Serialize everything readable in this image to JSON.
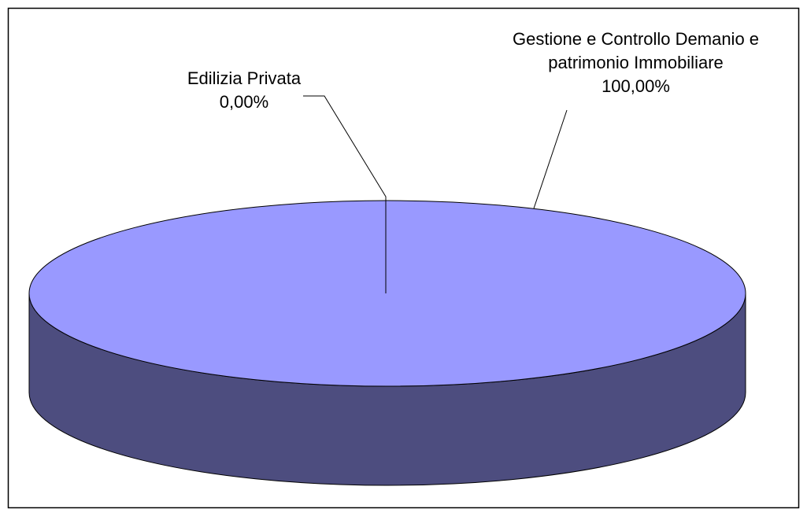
{
  "chart_data": {
    "type": "pie3d",
    "categories": [
      "Edilizia Privata",
      "Gestione e Controllo Demanio e patrimonio Immobiliare"
    ],
    "values": [
      0,
      100
    ],
    "value_labels": [
      "0,00%",
      "100,00%"
    ],
    "color": "#9999ff",
    "side_color": "#4d4d7f"
  }
}
